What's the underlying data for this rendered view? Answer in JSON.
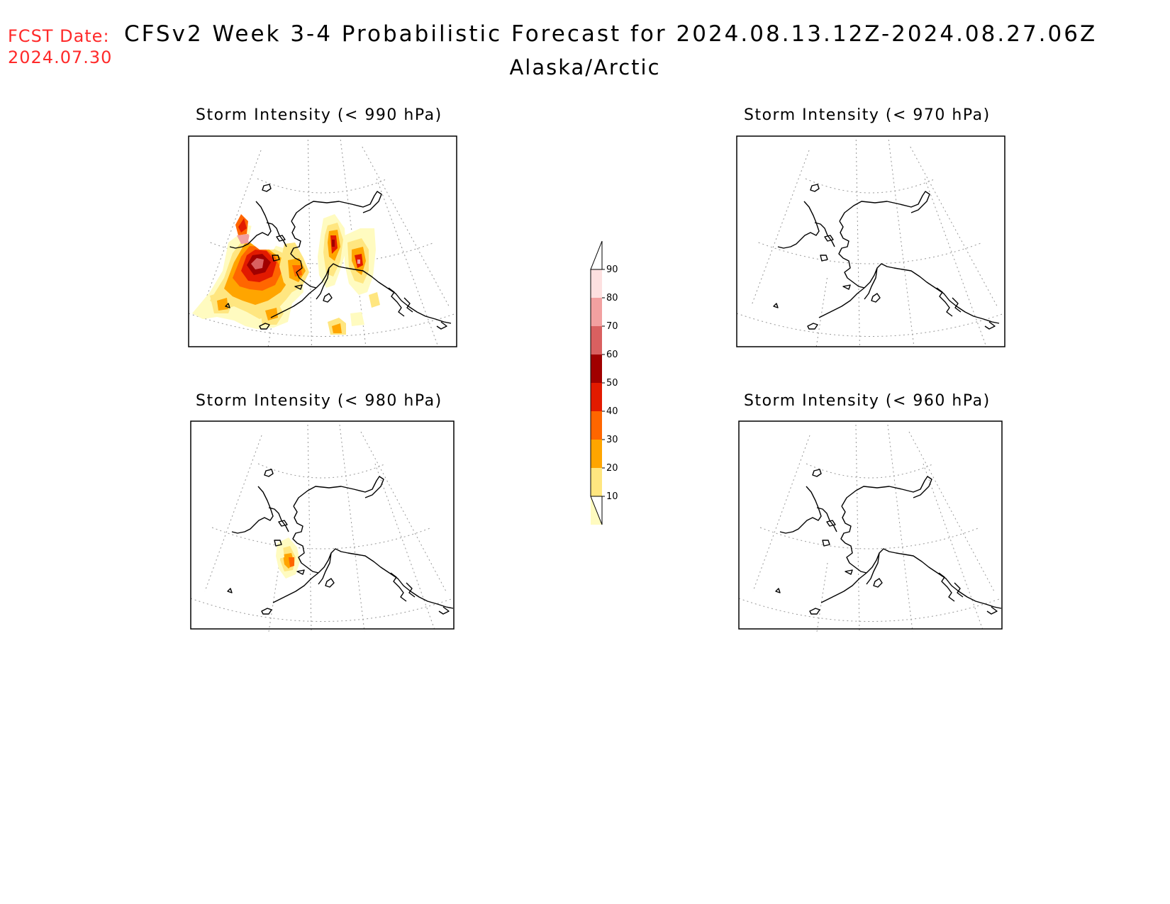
{
  "header": {
    "fcst_label": "FCST Date:",
    "fcst_date": "2024.07.30",
    "title": "CFSv2 Week 3-4 Probabilistic Forecast for 2024.08.13.12Z-2024.08.27.06Z",
    "subtitle": "Alaska/Arctic"
  },
  "panels": [
    {
      "id": "p990",
      "title": "Storm Intensity (< 990 hPa)"
    },
    {
      "id": "p970",
      "title": "Storm Intensity (< 970 hPa)"
    },
    {
      "id": "p980",
      "title": "Storm Intensity (< 980 hPa)"
    },
    {
      "id": "p960",
      "title": "Storm Intensity (< 960 hPa)"
    }
  ],
  "colorbar": {
    "levels": [
      "10",
      "20",
      "30",
      "40",
      "50",
      "60",
      "70",
      "80",
      "90"
    ],
    "colors": [
      "#fffbc0",
      "#ffe680",
      "#ffa500",
      "#ff6600",
      "#e21a00",
      "#a00000",
      "#d96060",
      "#f2a0a0",
      "#fde0e0"
    ]
  }
}
